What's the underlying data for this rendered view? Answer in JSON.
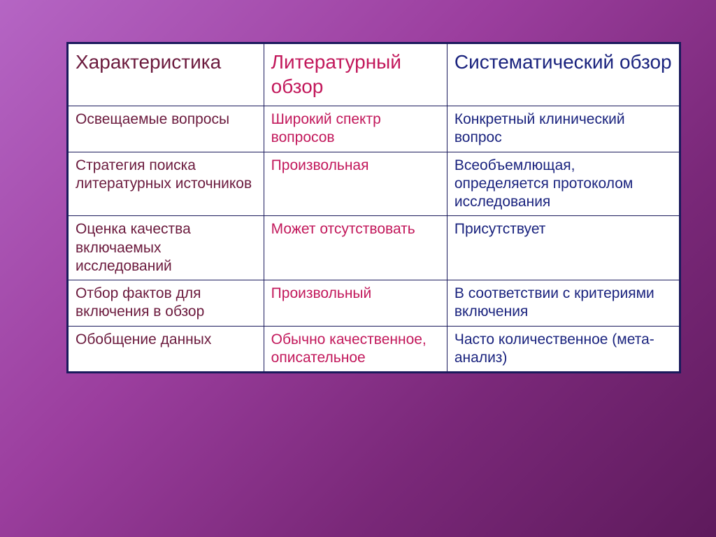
{
  "table": {
    "columns": [
      {
        "label": "Характеристика",
        "colorClass": "color-dark-red"
      },
      {
        "label": "Литературный обзор",
        "colorClass": "color-magenta"
      },
      {
        "label": "Систематический обзор",
        "colorClass": "color-navy"
      }
    ],
    "rows": [
      {
        "c1": "Освещаемые вопросы",
        "c2": "Широкий спектр вопросов",
        "c3": "Конкретный клинический вопрос"
      },
      {
        "c1": "Стратегия поиска литературных источников",
        "c2": "Произвольная",
        "c3": "Всеобъемлющая, определяется протоколом исследования"
      },
      {
        "c1": "Оценка качества включаемых исследований",
        "c2": "Может отсутствовать",
        "c3": "Присутствует"
      },
      {
        "c1": "Отбор фактов для включения в обзор",
        "c2": "Произвольный",
        "c3": "В соответствии с критериями включения"
      },
      {
        "c1": "Обобщение данных",
        "c2": "Обычно качественное, описательное",
        "c3": "Часто количественное (мета-анализ)"
      }
    ],
    "styling": {
      "col1_color": "#6b1a3d",
      "col2_color": "#c2185b",
      "col3_color": "#1a237e",
      "border_color": "#1a1a5c",
      "background_color": "#ffffff",
      "header_fontsize": 28,
      "body_fontsize": 21,
      "col_widths_pct": [
        32,
        30,
        38
      ]
    }
  },
  "slide": {
    "bg_gradient": [
      "#b565c4",
      "#9b3e9e",
      "#7a2879",
      "#5e1a5c"
    ]
  }
}
